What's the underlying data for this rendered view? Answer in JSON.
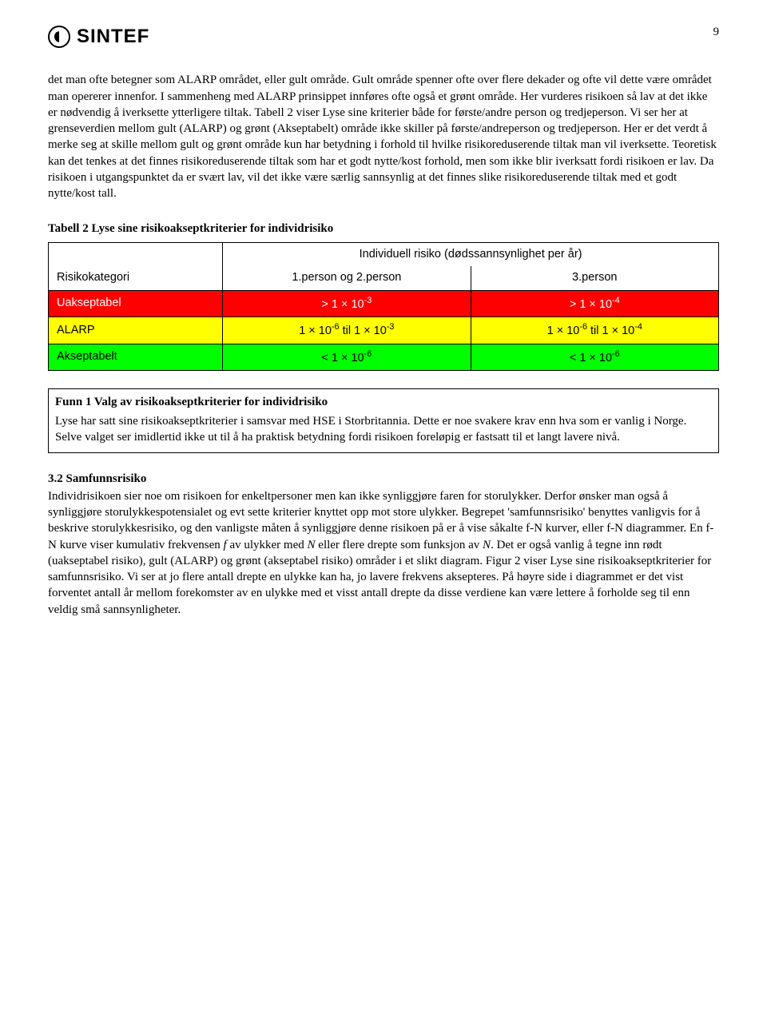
{
  "page_number": "9",
  "logo_text": "SINTEF",
  "paragraph1": "det man ofte betegner som ALARP området, eller gult område. Gult område spenner ofte over flere dekader og ofte vil dette være området man opererer innenfor. I sammenheng med ALARP prinsippet innføres ofte også et grønt område. Her vurderes risikoen så lav at det ikke er nødvendig å iverksette ytterligere tiltak. Tabell 2 viser Lyse sine kriterier både for første/andre person og tredjeperson. Vi ser her at grenseverdien mellom gult (ALARP) og grønt (Akseptabelt) område ikke skiller på første/andreperson og tredjeperson. Her er det verdt å merke seg at skille mellom gult og grønt område kun har betydning i forhold til hvilke risikoreduserende tiltak man vil iverksette. Teoretisk kan det tenkes at det finnes risikoreduserende tiltak som har et godt nytte/kost forhold, men som ikke blir iverksatt fordi risikoen er lav. Da risikoen i utgangspunktet da er svært lav, vil det ikke være særlig sannsynlig at det finnes slike risikoreduserende tiltak med et godt nytte/kost tall.",
  "table_caption": "Tabell 2 Lyse sine risikoakseptkriterier for individrisiko",
  "table": {
    "header_left": "Risikokategori",
    "header_span": "Individuell risiko (dødssannsynlighet per år)",
    "sub1": "1.person og 2.person",
    "sub2": "3.person",
    "rows": [
      {
        "cat": "Uakseptabel",
        "c1_html": "> 1 × 10<sup>-3</sup>",
        "c2_html": "> 1 × 10<sup>-4</sup>",
        "bg": "#ff0000",
        "fg": "#ffffff"
      },
      {
        "cat": "ALARP",
        "c1_html": "1 × 10<sup>-6</sup> til 1 × 10<sup>-3</sup>",
        "c2_html": "1 × 10<sup>-6</sup> til 1 × 10<sup>-4</sup>",
        "bg": "#ffff00",
        "fg": "#000000"
      },
      {
        "cat": "Akseptabelt",
        "c1_html": "< 1 × 10<sup>-6</sup>",
        "c2_html": "< 1 × 10<sup>-6</sup>",
        "bg": "#00ff00",
        "fg": "#000000"
      }
    ]
  },
  "findings": {
    "title": "Funn 1 Valg av risikoakseptkriterier for individrisiko",
    "body": "Lyse har satt sine risikoakseptkriterier i samsvar med HSE i Storbritannia. Dette er noe svakere krav enn hva som er vanlig i Norge. Selve valget ser imidlertid ikke ut til å ha praktisk betydning fordi risikoen foreløpig er fastsatt til et langt lavere nivå."
  },
  "section32_title": "3.2  Samfunnsrisiko",
  "paragraph2_html": "Individrisikoen sier noe om risikoen for enkeltpersoner men kan ikke synliggjøre faren for storulykker. Derfor ønsker man også å synliggjøre storulykkespotensialet og evt sette kriterier knyttet opp mot store ulykker. Begrepet 'samfunnsrisiko' benyttes vanligvis for å beskrive storulykkesrisiko, og den vanligste måten å synliggjøre denne risikoen på er å vise såkalte f-N kurver, eller f-N diagrammer. En f-N kurve viser kumulativ frekvensen <span class=\"italic\">f</span> av ulykker med <span class=\"italic\">N</span> eller flere drepte som funksjon av <span class=\"italic\">N</span>. Det er også vanlig å tegne inn rødt (uakseptabel risiko), gult (ALARP) og grønt (akseptabel risiko) områder i et slikt diagram. Figur 2 viser Lyse sine risikoakseptkriterier for samfunnsrisiko. Vi ser at jo flere antall drepte en ulykke kan ha, jo lavere frekvens aksepteres. På høyre side i diagrammet er det vist forventet antall år mellom forekomster av en ulykke med et visst antall drepte da disse verdiene kan være lettere å forholde seg til enn veldig små sannsynligheter."
}
